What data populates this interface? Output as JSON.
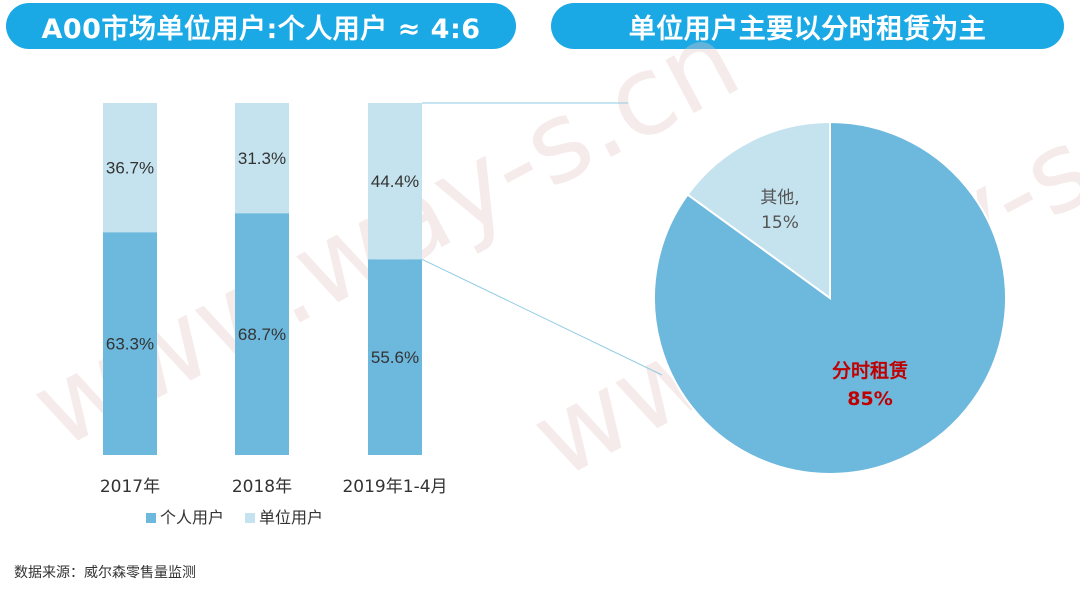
{
  "header": {
    "left_title": "A00市场单位用户:个人用户 ≈ 4:6",
    "right_title": "单位用户主要以分时租赁为主"
  },
  "watermark": "www.way-s.cn",
  "source": "数据来源：威尔森零售量监测",
  "chart_data": [
    {
      "type": "bar",
      "stacked": true,
      "categories": [
        "2017年",
        "2018年",
        "2019年1-4月"
      ],
      "series": [
        {
          "name": "个人用户",
          "values": [
            63.3,
            68.7,
            55.6
          ],
          "labels": [
            "63.3%",
            "68.7%",
            "55.6%"
          ],
          "color": "#6db8dd"
        },
        {
          "name": "单位用户",
          "values": [
            36.7,
            31.3,
            44.4
          ],
          "labels": [
            "36.7%",
            "31.3%",
            "44.4%"
          ],
          "color": "#c5e3ef"
        }
      ],
      "ylim": [
        0,
        100
      ],
      "legend": "bottom"
    },
    {
      "type": "pie",
      "slices": [
        {
          "name": "分时租赁",
          "value": 85,
          "label": "85%",
          "color": "#6db8dd"
        },
        {
          "name": "其他,",
          "value": 15,
          "label": "15%",
          "color": "#c5e3ef"
        }
      ]
    }
  ]
}
